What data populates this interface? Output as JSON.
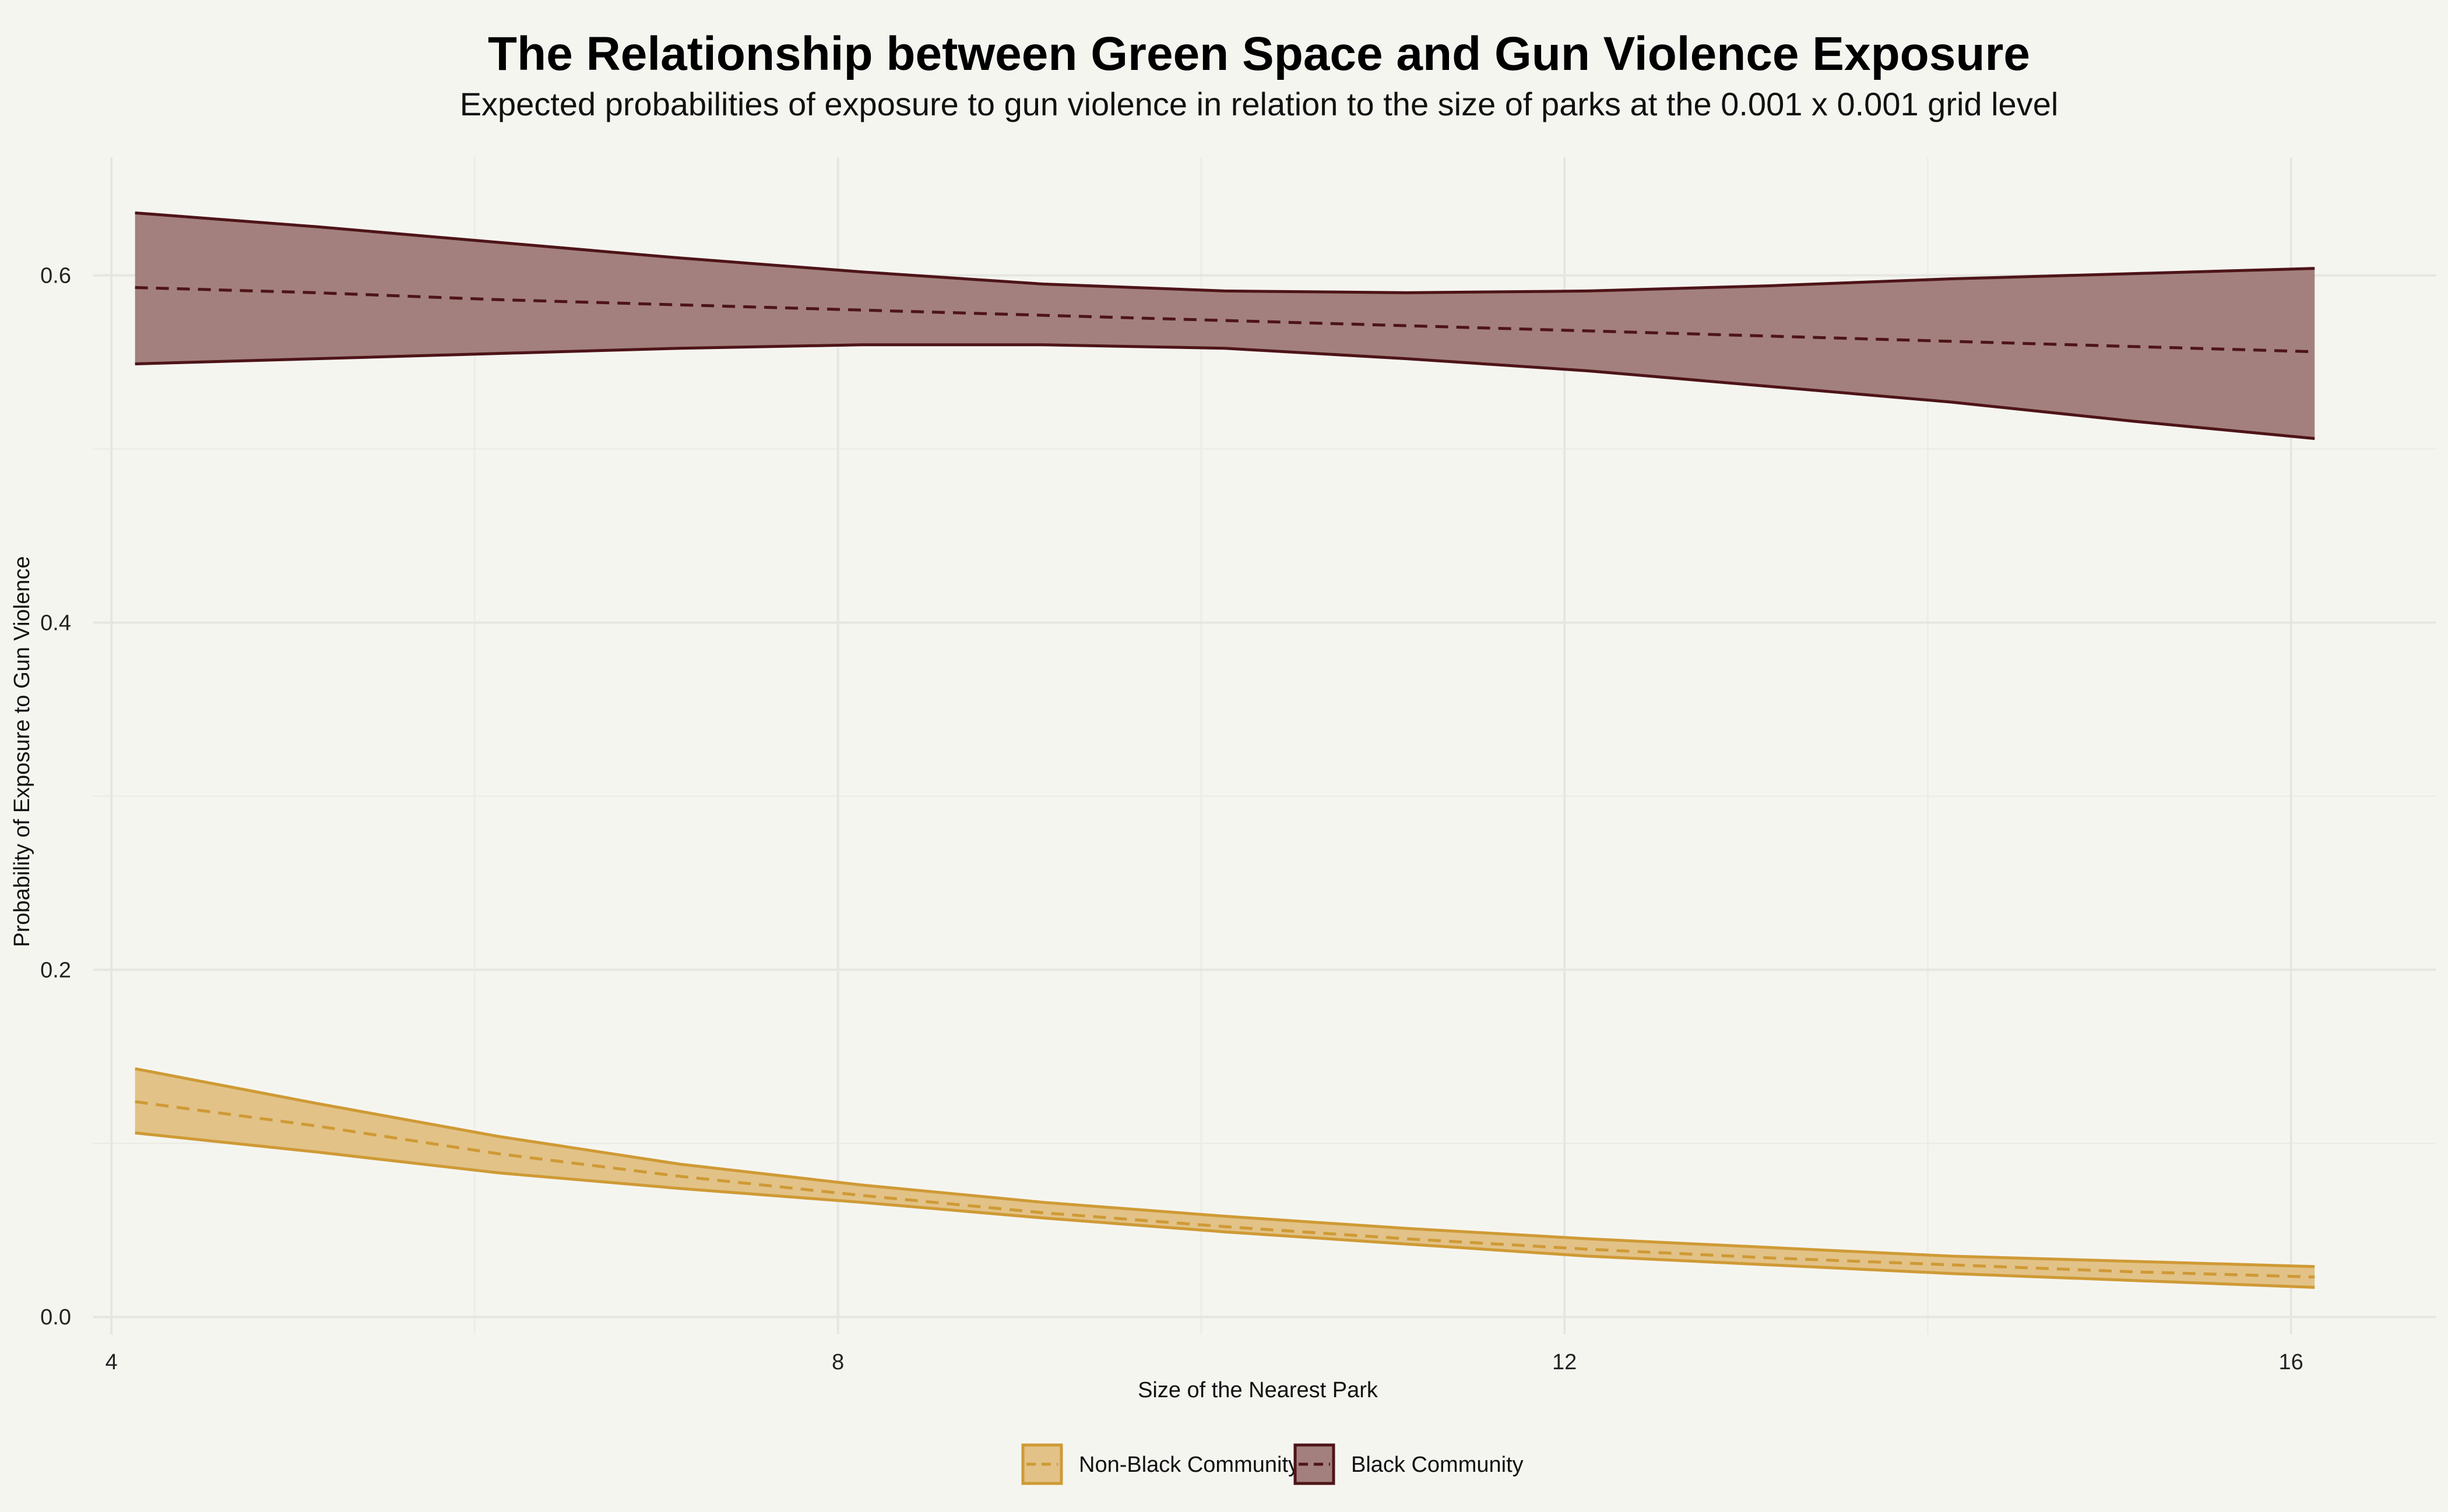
{
  "chart_data": {
    "type": "area",
    "title": "The Relationship between Green Space and Gun Violence Exposure",
    "subtitle": "Expected probabilities of exposure to gun violence in relation to the size of parks at the 0.001 x 0.001 grid level",
    "xlabel": "Size of the Nearest Park",
    "ylabel": "Probability of Exposure to Gun Violence",
    "xlim": [
      3.9,
      16.8
    ],
    "ylim": [
      -0.01,
      0.668
    ],
    "x_ticks": [
      4,
      8,
      12,
      16
    ],
    "x_tick_labels": [
      "4",
      "8",
      "12",
      "16"
    ],
    "y_ticks": [
      0.0,
      0.2,
      0.4,
      0.6
    ],
    "y_tick_labels": [
      "0.0",
      "0.2",
      "0.4",
      "0.6"
    ],
    "grid": true,
    "legend_position": "bottom",
    "series": [
      {
        "name": "Non-Black Community",
        "fill_color": "#e2c287",
        "line_color": "#cf9a35",
        "x": [
          4.13,
          5.13,
          6.13,
          7.13,
          8.13,
          9.13,
          10.13,
          11.13,
          12.13,
          13.13,
          14.13,
          15.13,
          16.13
        ],
        "estimate": [
          0.124,
          0.11,
          0.094,
          0.081,
          0.07,
          0.06,
          0.052,
          0.045,
          0.039,
          0.034,
          0.03,
          0.026,
          0.023
        ],
        "lower": [
          0.106,
          0.095,
          0.083,
          0.074,
          0.066,
          0.057,
          0.049,
          0.042,
          0.035,
          0.03,
          0.025,
          0.021,
          0.017
        ],
        "upper": [
          0.143,
          0.123,
          0.104,
          0.088,
          0.076,
          0.066,
          0.058,
          0.051,
          0.045,
          0.04,
          0.035,
          0.032,
          0.029
        ]
      },
      {
        "name": "Black Community",
        "fill_color": "#a3807d",
        "line_color": "#4e1418",
        "x": [
          4.13,
          5.13,
          6.13,
          7.13,
          8.13,
          9.13,
          10.13,
          11.13,
          12.13,
          13.13,
          14.13,
          15.13,
          16.13
        ],
        "estimate": [
          0.593,
          0.59,
          0.586,
          0.583,
          0.58,
          0.577,
          0.574,
          0.571,
          0.568,
          0.565,
          0.562,
          0.559,
          0.556
        ],
        "lower": [
          0.549,
          0.552,
          0.555,
          0.558,
          0.56,
          0.56,
          0.558,
          0.552,
          0.545,
          0.536,
          0.527,
          0.516,
          0.506
        ],
        "upper": [
          0.636,
          0.628,
          0.619,
          0.61,
          0.602,
          0.595,
          0.591,
          0.59,
          0.591,
          0.594,
          0.598,
          0.601,
          0.604
        ]
      }
    ]
  }
}
